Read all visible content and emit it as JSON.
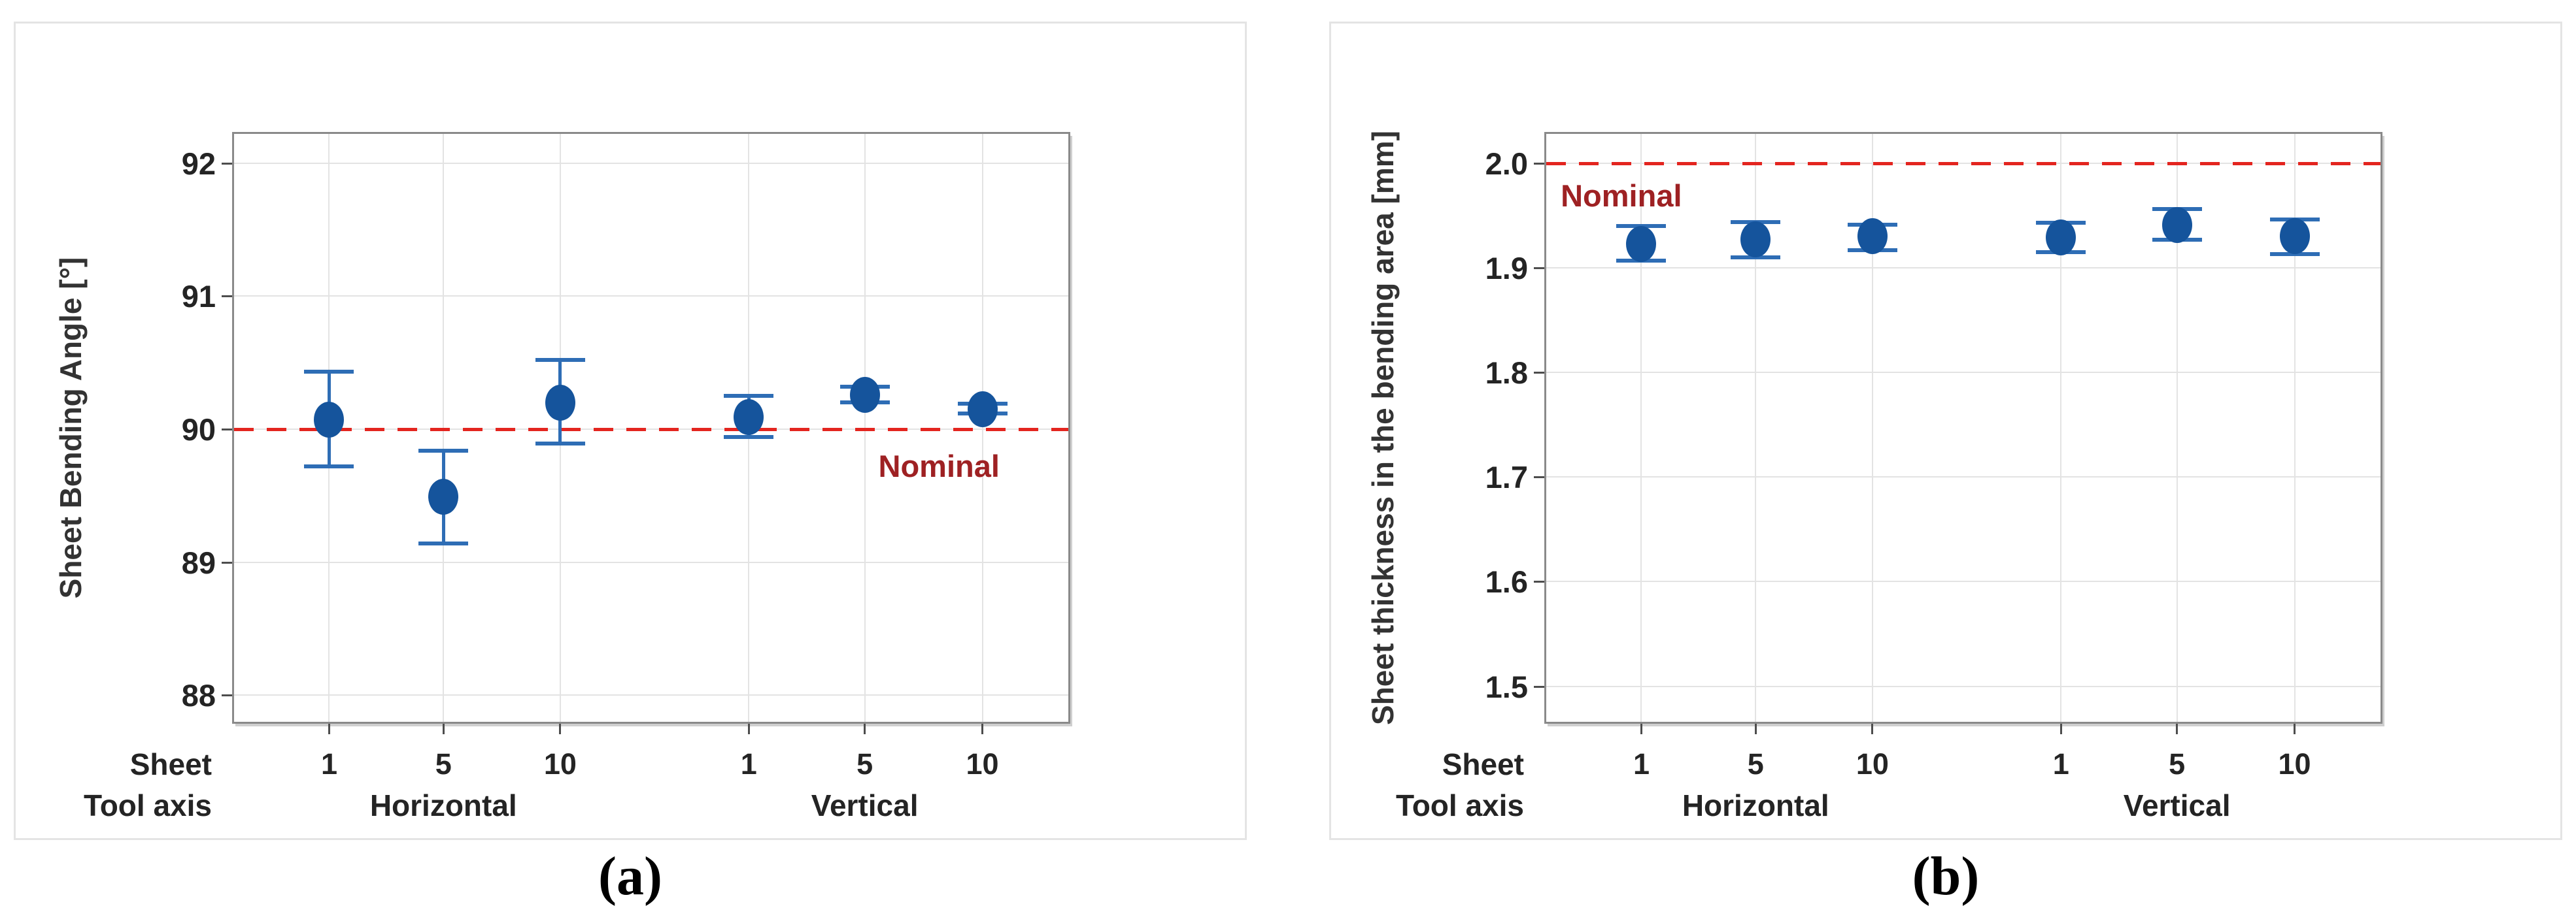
{
  "colors": {
    "marker_blue": "#15549C",
    "error_bar_blue": "#2E6DB5",
    "reference_line_red": "#E3251F",
    "reference_text_red": "#9E2123"
  },
  "chart_data": [
    {
      "type": "scatter",
      "title": "",
      "ylabel": "Sheet Bending Angle [°]",
      "ylim": [
        87.8,
        92.22
      ],
      "yticks": [
        92,
        91,
        90,
        89,
        88
      ],
      "ytick_labels": [
        "92",
        "91",
        "90",
        "89",
        "88"
      ],
      "x_row_labels": {
        "sheet": "Sheet",
        "tool_axis": "Tool axis"
      },
      "x_sheet_ticks": [
        "1",
        "5",
        "10",
        "1",
        "5",
        "10"
      ],
      "x_groups": [
        "Horizontal",
        "Vertical"
      ],
      "reference_line": {
        "value": 90.0,
        "label": "Nominal"
      },
      "legend_position": "none",
      "grid": true,
      "points": [
        {
          "tool_axis": "Horizontal",
          "sheet": "1",
          "mean": 90.07,
          "ci_low": 89.72,
          "ci_high": 90.43
        },
        {
          "tool_axis": "Horizontal",
          "sheet": "5",
          "mean": 89.49,
          "ci_low": 89.14,
          "ci_high": 89.84
        },
        {
          "tool_axis": "Horizontal",
          "sheet": "10",
          "mean": 90.2,
          "ci_low": 89.89,
          "ci_high": 90.52
        },
        {
          "tool_axis": "Vertical",
          "sheet": "1",
          "mean": 90.09,
          "ci_low": 89.94,
          "ci_high": 90.25
        },
        {
          "tool_axis": "Vertical",
          "sheet": "5",
          "mean": 90.26,
          "ci_low": 90.2,
          "ci_high": 90.32
        },
        {
          "tool_axis": "Vertical",
          "sheet": "10",
          "mean": 90.15,
          "ci_low": 90.12,
          "ci_high": 90.19
        }
      ],
      "caption": "(a)"
    },
    {
      "type": "scatter",
      "title": "",
      "ylabel": "Sheet thickness in the bending area [mm]",
      "ylim": [
        1.466,
        2.028
      ],
      "yticks": [
        2.0,
        1.9,
        1.8,
        1.7,
        1.6,
        1.5
      ],
      "ytick_labels": [
        "2.0",
        "1.9",
        "1.8",
        "1.7",
        "1.6",
        "1.5"
      ],
      "x_row_labels": {
        "sheet": "Sheet",
        "tool_axis": "Tool axis"
      },
      "x_sheet_ticks": [
        "1",
        "5",
        "10",
        "1",
        "5",
        "10"
      ],
      "x_groups": [
        "Horizontal",
        "Vertical"
      ],
      "reference_line": {
        "value": 2.0,
        "label": "Nominal"
      },
      "legend_position": "none",
      "grid": true,
      "points": [
        {
          "tool_axis": "Horizontal",
          "sheet": "1",
          "mean": 1.923,
          "ci_low": 1.907,
          "ci_high": 1.94
        },
        {
          "tool_axis": "Horizontal",
          "sheet": "5",
          "mean": 1.927,
          "ci_low": 1.91,
          "ci_high": 1.944
        },
        {
          "tool_axis": "Horizontal",
          "sheet": "10",
          "mean": 1.93,
          "ci_low": 1.917,
          "ci_high": 1.941
        },
        {
          "tool_axis": "Vertical",
          "sheet": "1",
          "mean": 1.929,
          "ci_low": 1.915,
          "ci_high": 1.943
        },
        {
          "tool_axis": "Vertical",
          "sheet": "5",
          "mean": 1.941,
          "ci_low": 1.927,
          "ci_high": 1.956
        },
        {
          "tool_axis": "Vertical",
          "sheet": "10",
          "mean": 1.93,
          "ci_low": 1.913,
          "ci_high": 1.946
        }
      ],
      "caption": "(b)"
    }
  ]
}
